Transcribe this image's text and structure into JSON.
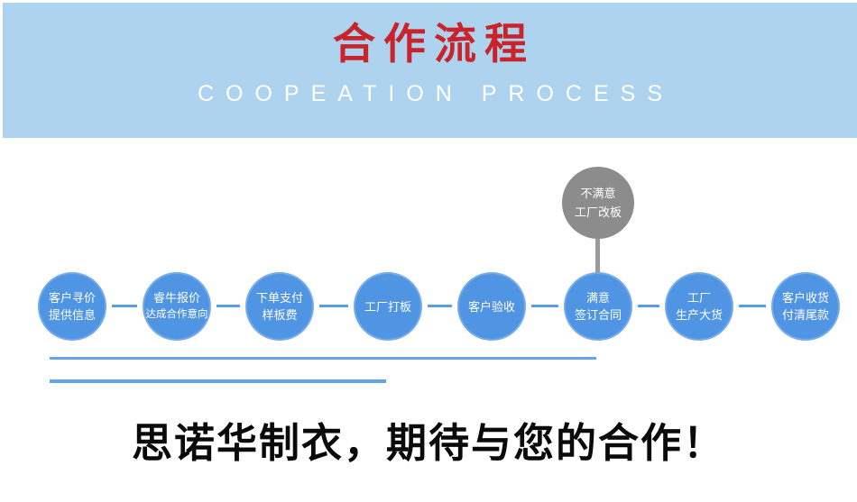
{
  "header": {
    "title": "合作流程",
    "subtitle": "COOPEATION PROCESS",
    "band_color": "#aed3ee",
    "title_color": "#c9242b",
    "subtitle_color": "#ffffff"
  },
  "flow": {
    "circle_color": "#5094e4",
    "connector_color": "#5b9ce9",
    "reject_color": "#8c8c8c",
    "reject_connector_color": "#9a9a9a",
    "steps": [
      {
        "lines": [
          "客户寻价",
          "提供信息"
        ]
      },
      {
        "lines": [
          "睿牛报价",
          "达成合作意向"
        ]
      },
      {
        "lines": [
          "下单支付",
          "样板费"
        ]
      },
      {
        "lines": [
          "工厂打板"
        ]
      },
      {
        "lines": [
          "客户验收"
        ]
      },
      {
        "lines": [
          "满意",
          "签订合同"
        ]
      },
      {
        "lines": [
          "工厂",
          "生产大货"
        ]
      },
      {
        "lines": [
          "客户收货",
          "付清尾款"
        ]
      }
    ],
    "reject": {
      "lines": [
        "不满意",
        "工厂改板"
      ]
    }
  },
  "decor": {
    "line_color": "#64a3ee"
  },
  "footer": {
    "slogan": "思诺华制衣，期待与您的合作！"
  }
}
